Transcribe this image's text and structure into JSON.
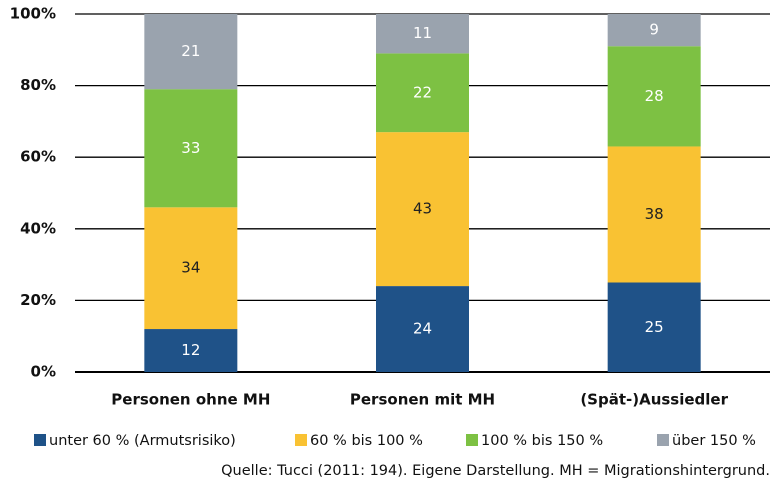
{
  "chart_data": {
    "type": "stacked_bar",
    "categories": [
      "Personen ohne MH",
      "Personen mit MH",
      "(Spät-)Aussiedler"
    ],
    "series": [
      {
        "name": "unter 60 % (Armutsrisiko)",
        "color": "#1f5288",
        "label_color": "#ffffff",
        "values": [
          12,
          24,
          25
        ]
      },
      {
        "name": "60 % bis 100 %",
        "color": "#f9c233",
        "label_color": "#222222",
        "values": [
          34,
          43,
          38
        ]
      },
      {
        "name": "100 % bis 150 %",
        "color": "#7dc143",
        "label_color": "#ffffff",
        "values": [
          33,
          22,
          28
        ]
      },
      {
        "name": "über 150 %",
        "color": "#9aa3ae",
        "label_color": "#ffffff",
        "values": [
          21,
          11,
          9
        ]
      }
    ],
    "ylim": [
      0,
      100
    ],
    "yticks": [
      {
        "value": 0,
        "label": "0%"
      },
      {
        "value": 20,
        "label": "20%"
      },
      {
        "value": 40,
        "label": "40%"
      },
      {
        "value": 60,
        "label": "60%"
      },
      {
        "value": 80,
        "label": "80%"
      },
      {
        "value": 100,
        "label": "100%"
      }
    ],
    "grid": true,
    "note": "Quelle: Tucci (2011: 194). Eigene Darstellung. MH = Migrationshintergrund."
  }
}
